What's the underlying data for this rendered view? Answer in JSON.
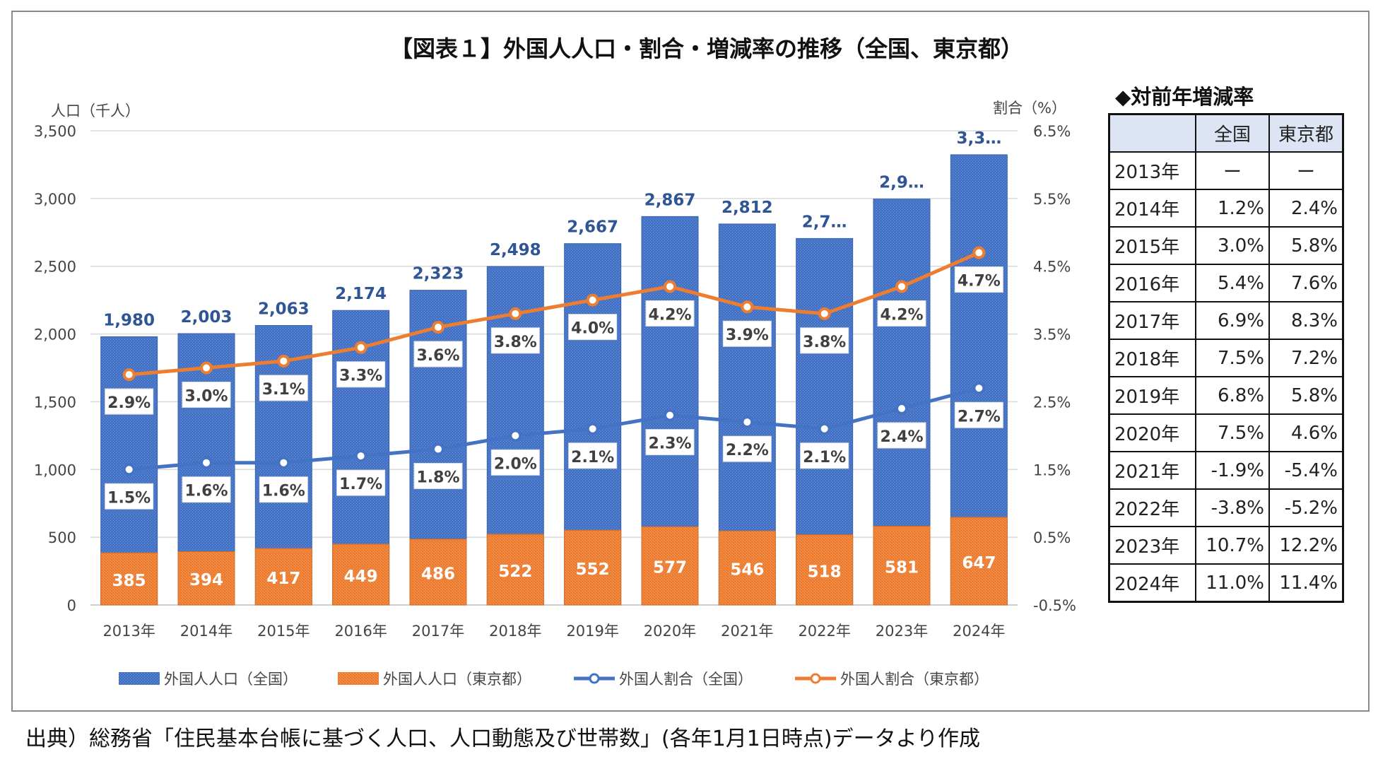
{
  "source_note": "出典）総務省「住民基本台帳に基づく人口、人口動態及び世帯数」(各年1月1日時点)データより作成",
  "side_table": {
    "title": "◆対前年増減率",
    "header": [
      "",
      "全国",
      "東京都"
    ],
    "rows": [
      [
        "2013年",
        "ー",
        "ー"
      ],
      [
        "2014年",
        "1.2%",
        "2.4%"
      ],
      [
        "2015年",
        "3.0%",
        "5.8%"
      ],
      [
        "2016年",
        "5.4%",
        "7.6%"
      ],
      [
        "2017年",
        "6.9%",
        "8.3%"
      ],
      [
        "2018年",
        "7.5%",
        "7.2%"
      ],
      [
        "2019年",
        "6.8%",
        "5.8%"
      ],
      [
        "2020年",
        "7.5%",
        "4.6%"
      ],
      [
        "2021年",
        "-1.9%",
        "-5.4%"
      ],
      [
        "2022年",
        "-3.8%",
        "-5.2%"
      ],
      [
        "2023年",
        "10.7%",
        "12.2%"
      ],
      [
        "2024年",
        "11.0%",
        "11.4%"
      ]
    ]
  },
  "colors": {
    "national_bar": "#4472c4",
    "tokyo_bar": "#ed7d31",
    "national_line": "#4472c4",
    "tokyo_line": "#ed7d31",
    "bar_label_national": "#2f5597",
    "bar_label_tokyo": "#ffffff",
    "gridline": "#d9d9d9"
  },
  "chart_data": {
    "type": "bar",
    "title": "【図表１】外国人人口・割合・増減率の推移（全国、東京都）",
    "ylabel_left": "人口（千人）",
    "ylabel_right": "割合（%）",
    "ylim_left": [
      0,
      3500
    ],
    "ylim_right": [
      -0.5,
      6.5
    ],
    "yticks_left": [
      "0",
      "500",
      "1,000",
      "1,500",
      "2,000",
      "2,500",
      "3,000",
      "3,500"
    ],
    "yticks_right": [
      "-0.5%",
      "0.5%",
      "1.5%",
      "2.5%",
      "3.5%",
      "4.5%",
      "5.5%",
      "6.5%"
    ],
    "grid": true,
    "legend_position": "bottom",
    "categories": [
      "2013年",
      "2014年",
      "2015年",
      "2016年",
      "2017年",
      "2018年",
      "2019年",
      "2020年",
      "2021年",
      "2022年",
      "2023年",
      "2024年"
    ],
    "series": [
      {
        "name": "外国人人口（全国）",
        "type": "bar",
        "axis": "left",
        "values": [
          1980,
          2003,
          2063,
          2174,
          2323,
          2498,
          2667,
          2867,
          2812,
          2705,
          2996,
          3323
        ],
        "labels": [
          "1,980",
          "2,003",
          "2,063",
          "2,174",
          "2,323",
          "2,498",
          "2,667",
          "2,867",
          "2,812",
          "2,7…",
          "2,9…",
          "3,3…"
        ]
      },
      {
        "name": "外国人人口（東京都）",
        "type": "bar",
        "axis": "left",
        "values": [
          385,
          394,
          417,
          449,
          486,
          522,
          552,
          577,
          546,
          518,
          581,
          647
        ],
        "labels": [
          "385",
          "394",
          "417",
          "449",
          "486",
          "522",
          "552",
          "577",
          "546",
          "518",
          "581",
          "647"
        ]
      },
      {
        "name": "外国人割合（全国）",
        "type": "line",
        "axis": "right",
        "values": [
          1.5,
          1.6,
          1.6,
          1.7,
          1.8,
          2.0,
          2.1,
          2.3,
          2.2,
          2.1,
          2.4,
          2.7
        ],
        "labels": [
          "1.5%",
          "1.6%",
          "1.6%",
          "1.7%",
          "1.8%",
          "2.0%",
          "2.1%",
          "2.3%",
          "2.2%",
          "2.1%",
          "2.4%",
          "2.7%"
        ]
      },
      {
        "name": "外国人割合（東京都）",
        "type": "line",
        "axis": "right",
        "values": [
          2.9,
          3.0,
          3.1,
          3.3,
          3.6,
          3.8,
          4.0,
          4.2,
          3.9,
          3.8,
          4.2,
          4.7
        ],
        "labels": [
          "2.9%",
          "3.0%",
          "3.1%",
          "3.3%",
          "3.6%",
          "3.8%",
          "4.0%",
          "4.2%",
          "3.9%",
          "3.8%",
          "4.2%",
          "4.7%"
        ]
      }
    ]
  }
}
